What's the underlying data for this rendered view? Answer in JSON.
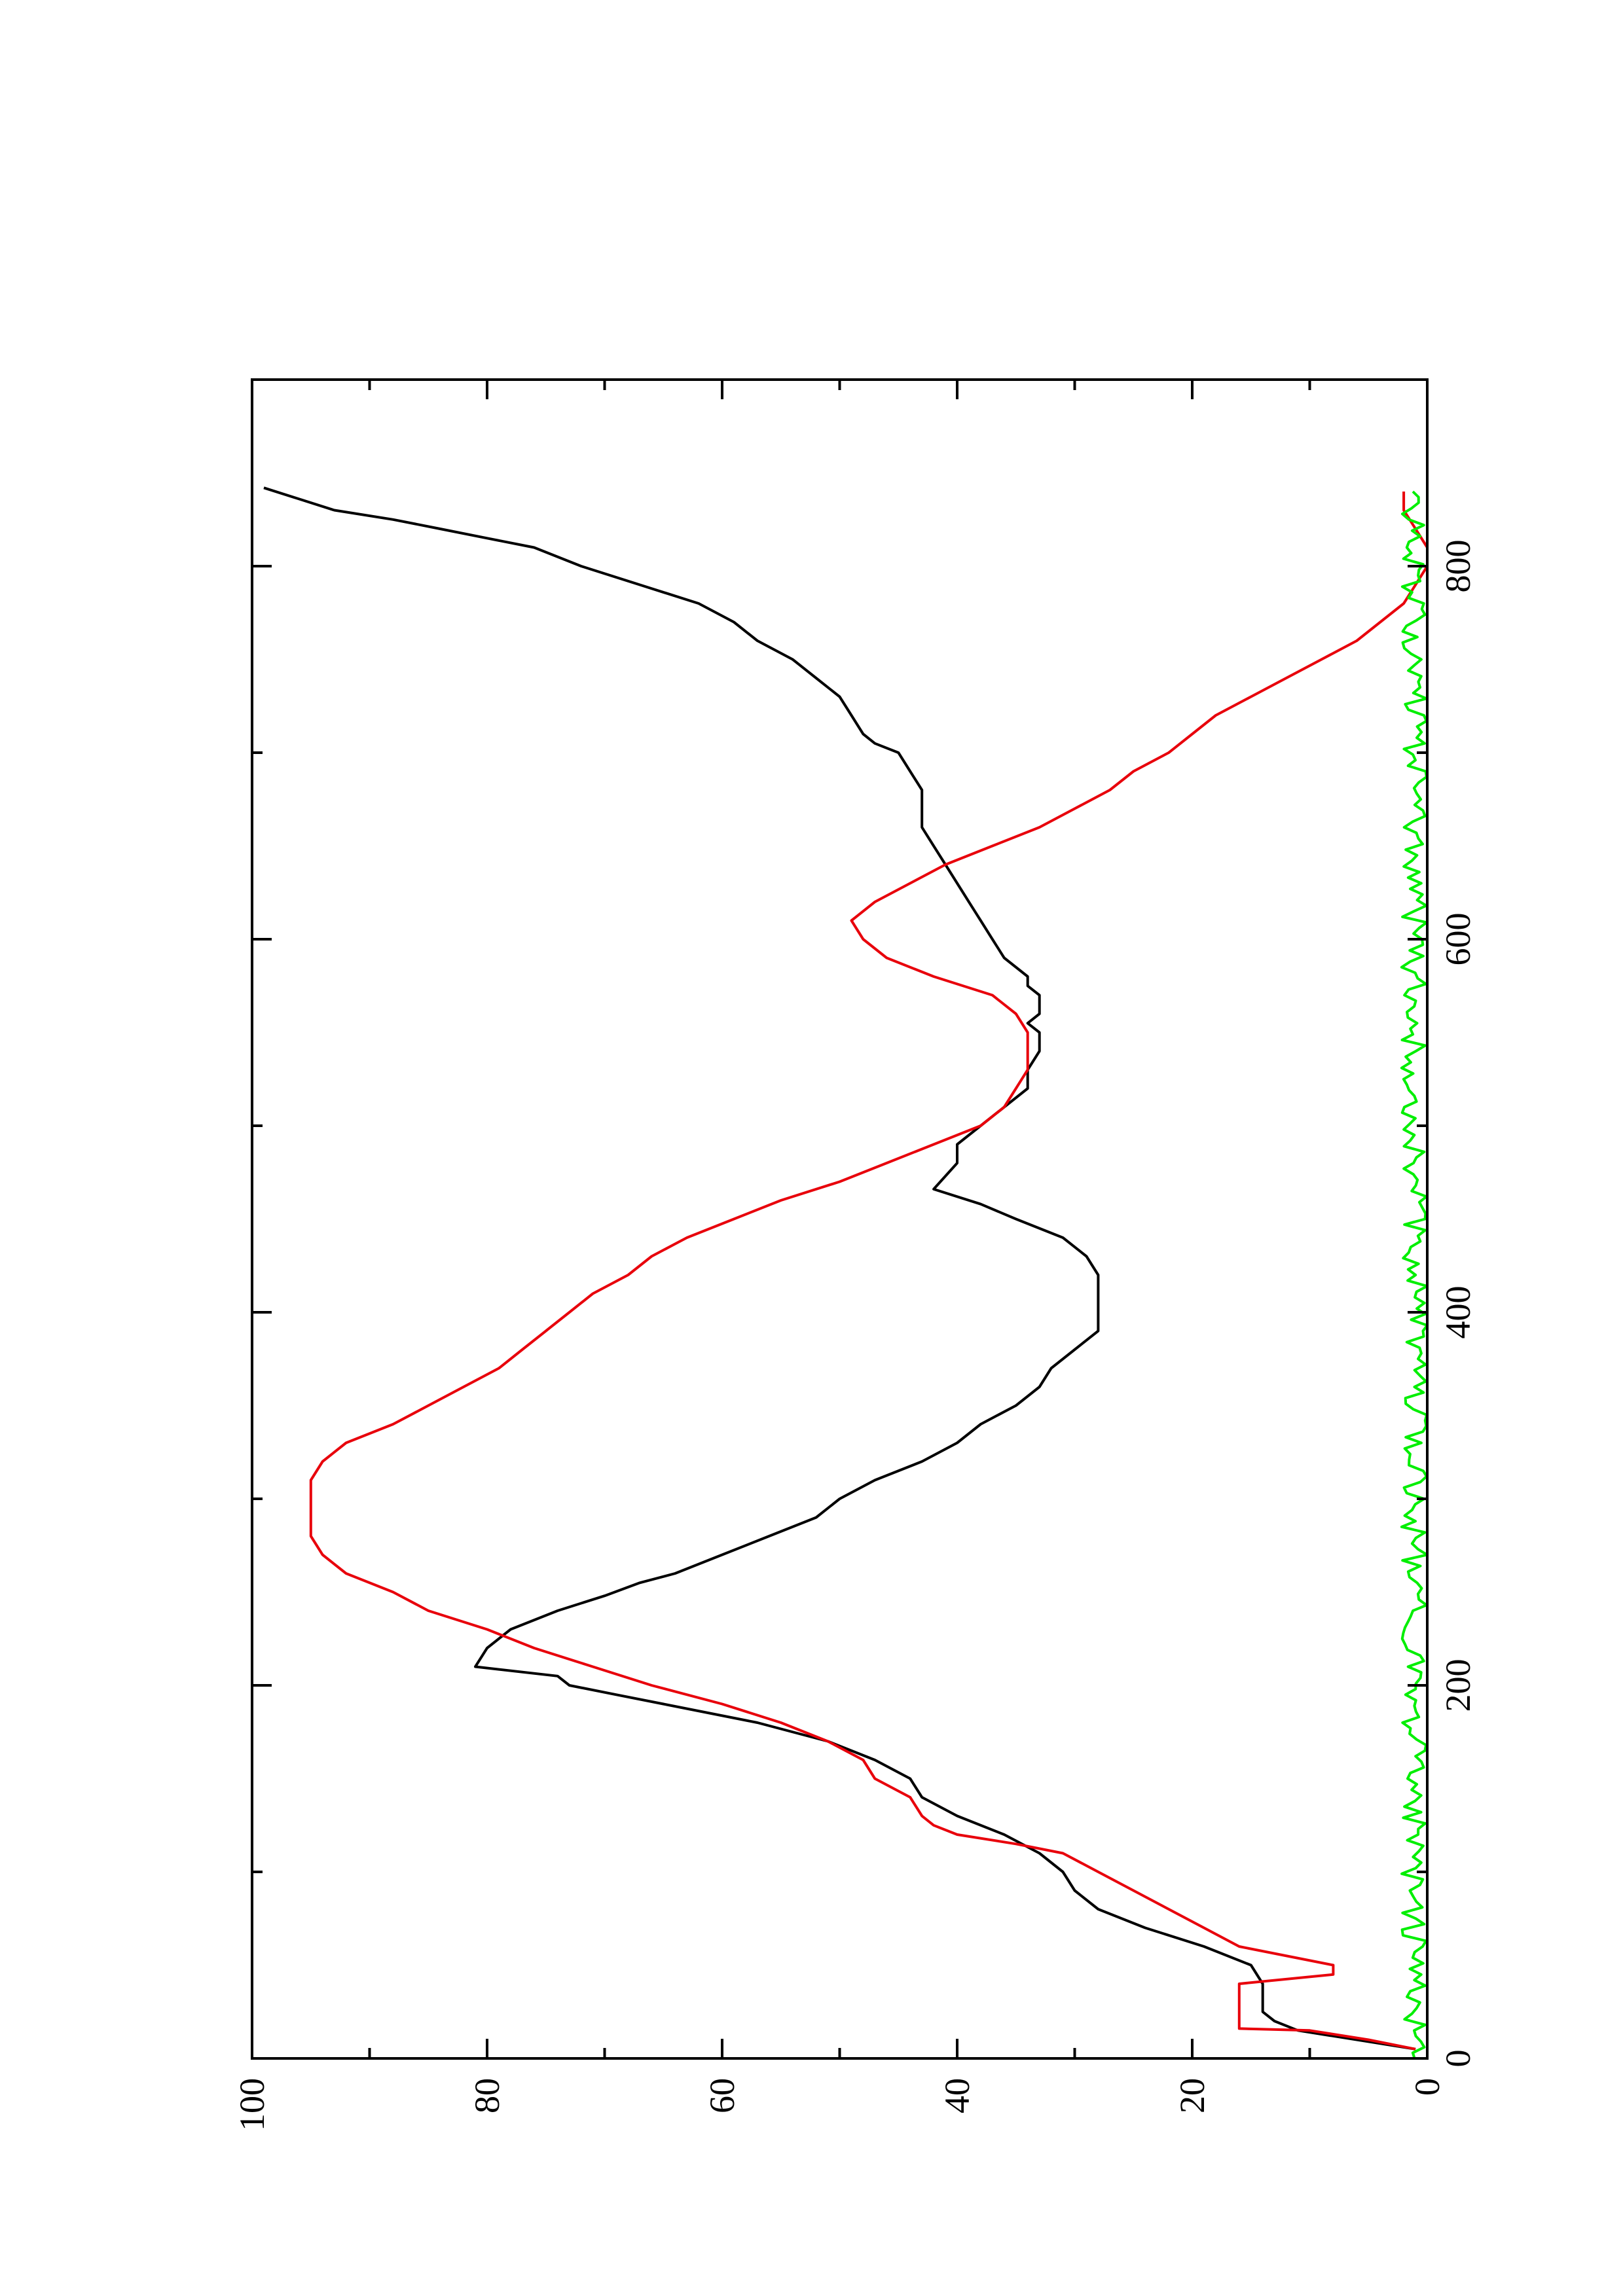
{
  "chart_data": {
    "type": "line",
    "orientation": "rotated 90° counter-clockwise (page in landscape)",
    "title": "",
    "xlabel": "",
    "ylabel": "",
    "xlim": [
      0,
      900
    ],
    "ylim": [
      0,
      100
    ],
    "x_ticks": [
      "0",
      "200",
      "400",
      "600",
      "800"
    ],
    "y_ticks": [
      "0",
      "20",
      "40",
      "60",
      "80",
      "100"
    ],
    "grid": false,
    "legend": "none",
    "series": [
      {
        "color": "#000000",
        "points": [
          [
            5,
            1
          ],
          [
            15,
            11
          ],
          [
            20,
            13
          ],
          [
            25,
            14
          ],
          [
            30,
            14
          ],
          [
            40,
            14
          ],
          [
            50,
            15
          ],
          [
            60,
            19
          ],
          [
            70,
            24
          ],
          [
            80,
            28
          ],
          [
            90,
            30
          ],
          [
            100,
            31
          ],
          [
            110,
            33
          ],
          [
            120,
            36
          ],
          [
            130,
            40
          ],
          [
            140,
            43
          ],
          [
            150,
            44
          ],
          [
            160,
            47
          ],
          [
            170,
            51
          ],
          [
            180,
            57
          ],
          [
            190,
            65
          ],
          [
            195,
            69
          ],
          [
            200,
            73
          ],
          [
            205,
            74
          ],
          [
            210,
            81
          ],
          [
            220,
            80
          ],
          [
            230,
            78
          ],
          [
            240,
            74
          ],
          [
            248,
            70
          ],
          [
            255,
            67
          ],
          [
            260,
            64
          ],
          [
            270,
            60
          ],
          [
            280,
            56
          ],
          [
            290,
            52
          ],
          [
            300,
            50
          ],
          [
            310,
            47
          ],
          [
            320,
            43
          ],
          [
            330,
            40
          ],
          [
            340,
            38
          ],
          [
            350,
            35
          ],
          [
            360,
            33
          ],
          [
            370,
            32
          ],
          [
            380,
            30
          ],
          [
            390,
            28
          ],
          [
            400,
            28
          ],
          [
            410,
            28
          ],
          [
            420,
            28
          ],
          [
            430,
            29
          ],
          [
            440,
            31
          ],
          [
            450,
            35
          ],
          [
            458,
            38
          ],
          [
            466,
            42
          ],
          [
            480,
            40
          ],
          [
            490,
            40
          ],
          [
            500,
            38
          ],
          [
            510,
            36
          ],
          [
            520,
            34
          ],
          [
            530,
            34
          ],
          [
            540,
            33
          ],
          [
            550,
            33
          ],
          [
            555,
            34
          ],
          [
            560,
            33
          ],
          [
            570,
            33
          ],
          [
            575,
            34
          ],
          [
            580,
            34
          ],
          [
            590,
            36
          ],
          [
            600,
            37
          ],
          [
            610,
            38
          ],
          [
            620,
            39
          ],
          [
            630,
            40
          ],
          [
            640,
            41
          ],
          [
            650,
            42
          ],
          [
            660,
            43
          ],
          [
            670,
            43
          ],
          [
            680,
            43
          ],
          [
            690,
            44
          ],
          [
            700,
            45
          ],
          [
            705,
            47
          ],
          [
            710,
            48
          ],
          [
            720,
            49
          ],
          [
            730,
            50
          ],
          [
            740,
            52
          ],
          [
            750,
            54
          ],
          [
            760,
            57
          ],
          [
            770,
            59
          ],
          [
            780,
            62
          ],
          [
            790,
            67
          ],
          [
            800,
            72
          ],
          [
            810,
            76
          ],
          [
            815,
            80
          ],
          [
            820,
            84
          ],
          [
            825,
            88
          ],
          [
            830,
            93
          ],
          [
            836,
            96
          ],
          [
            842,
            99
          ]
        ]
      },
      {
        "color": "#e8000b",
        "points": [
          [
            5,
            1
          ],
          [
            10,
            5
          ],
          [
            15,
            10
          ],
          [
            16,
            16
          ],
          [
            20,
            16
          ],
          [
            40,
            16
          ],
          [
            45,
            8
          ],
          [
            50,
            8
          ],
          [
            60,
            16
          ],
          [
            70,
            19
          ],
          [
            80,
            22
          ],
          [
            90,
            25
          ],
          [
            100,
            28
          ],
          [
            110,
            31
          ],
          [
            115,
            35
          ],
          [
            120,
            40
          ],
          [
            125,
            42
          ],
          [
            130,
            43
          ],
          [
            140,
            44
          ],
          [
            150,
            47
          ],
          [
            160,
            48
          ],
          [
            170,
            51
          ],
          [
            180,
            55
          ],
          [
            190,
            60
          ],
          [
            200,
            66
          ],
          [
            210,
            71
          ],
          [
            220,
            76
          ],
          [
            230,
            80
          ],
          [
            240,
            85
          ],
          [
            250,
            88
          ],
          [
            260,
            92
          ],
          [
            270,
            94
          ],
          [
            280,
            95
          ],
          [
            290,
            95
          ],
          [
            300,
            95
          ],
          [
            310,
            95
          ],
          [
            320,
            94
          ],
          [
            330,
            92
          ],
          [
            340,
            88
          ],
          [
            350,
            85
          ],
          [
            360,
            82
          ],
          [
            370,
            79
          ],
          [
            380,
            77
          ],
          [
            390,
            75
          ],
          [
            400,
            73
          ],
          [
            410,
            71
          ],
          [
            420,
            68
          ],
          [
            430,
            66
          ],
          [
            440,
            63
          ],
          [
            450,
            59
          ],
          [
            460,
            55
          ],
          [
            470,
            50
          ],
          [
            480,
            46
          ],
          [
            490,
            42
          ],
          [
            500,
            38
          ],
          [
            510,
            36
          ],
          [
            520,
            35
          ],
          [
            530,
            34
          ],
          [
            540,
            34
          ],
          [
            550,
            34
          ],
          [
            560,
            35
          ],
          [
            570,
            37
          ],
          [
            580,
            42
          ],
          [
            590,
            46
          ],
          [
            600,
            48
          ],
          [
            610,
            49
          ],
          [
            620,
            47
          ],
          [
            630,
            44
          ],
          [
            640,
            41
          ],
          [
            650,
            37
          ],
          [
            660,
            33
          ],
          [
            670,
            30
          ],
          [
            680,
            27
          ],
          [
            690,
            25
          ],
          [
            700,
            22
          ],
          [
            710,
            20
          ],
          [
            720,
            18
          ],
          [
            730,
            15
          ],
          [
            740,
            12
          ],
          [
            750,
            9
          ],
          [
            760,
            6
          ],
          [
            770,
            4
          ],
          [
            780,
            2
          ],
          [
            790,
            1
          ],
          [
            800,
            0
          ],
          [
            810,
            0
          ],
          [
            820,
            1
          ],
          [
            830,
            2
          ],
          [
            840,
            2
          ]
        ]
      },
      {
        "color": "#00ee00",
        "points": [
          [
            0,
            0
          ],
          [
            900,
            0
          ]
        ]
      }
    ]
  }
}
